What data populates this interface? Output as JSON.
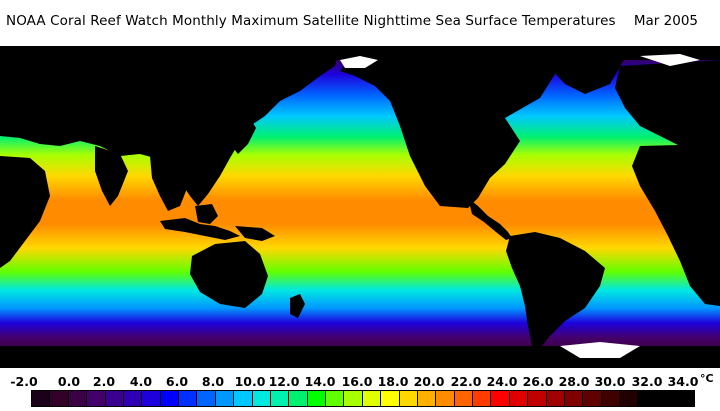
{
  "title": "NOAA Coral Reef Watch Monthly Maximum Satellite Nighttime Sea Surface Temperatures",
  "date": "Mar 2005",
  "legend": {
    "unit": "°C",
    "ticks": [
      "-2.0",
      "0.0",
      "2.0",
      "4.0",
      "6.0",
      "8.0",
      "10.0",
      "12.0",
      "14.0",
      "16.0",
      "18.0",
      "20.0",
      "22.0",
      "24.0",
      "26.0",
      "28.0",
      "30.0",
      "32.0",
      "34.0"
    ],
    "colors": [
      "#1a0018",
      "#33002a",
      "#3b0045",
      "#44006a",
      "#3a0090",
      "#2e00b4",
      "#1e00dc",
      "#0000ff",
      "#0030ff",
      "#0064ff",
      "#0098ff",
      "#00c8ff",
      "#00e8e0",
      "#00f0b0",
      "#00f070",
      "#00ff00",
      "#60ff00",
      "#a8ff00",
      "#e0ff00",
      "#ffff00",
      "#ffd800",
      "#ffb000",
      "#ff8c00",
      "#ff6400",
      "#ff3c00",
      "#ff0000",
      "#e00000",
      "#c00000",
      "#a00000",
      "#800000",
      "#600000",
      "#400000",
      "#200000",
      "#000000",
      "#000000",
      "#000000"
    ]
  },
  "map": {
    "land_color": "#000000",
    "ice_color": "#ffffff"
  }
}
